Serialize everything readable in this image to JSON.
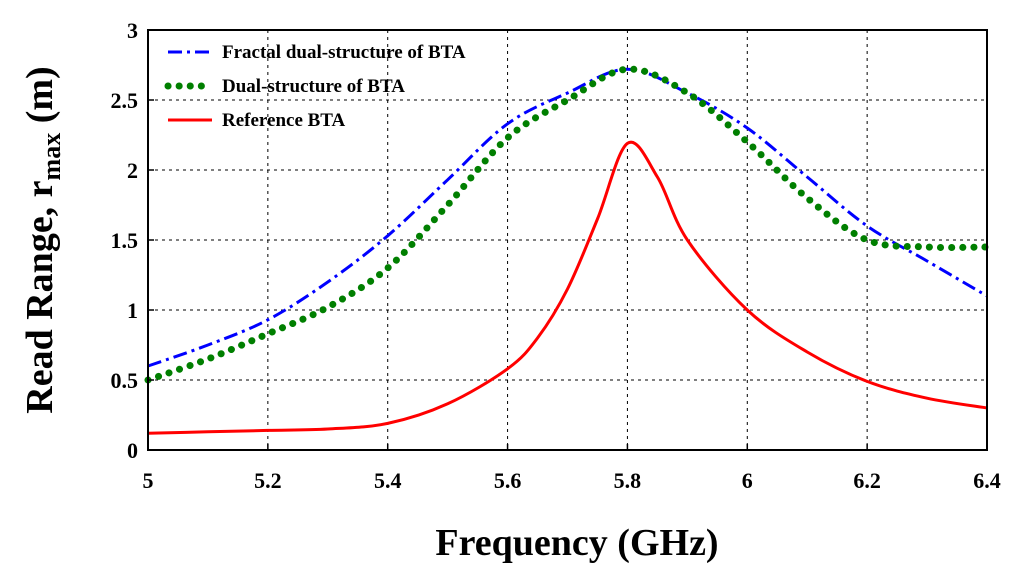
{
  "chart_data": {
    "type": "line",
    "title": "",
    "xlabel": "Frequency (GHz)",
    "ylabel_main": "Read Range, r",
    "ylabel_sub": "max",
    "ylabel_unit": " (m)",
    "xlim": [
      5,
      6.4
    ],
    "ylim": [
      0,
      3
    ],
    "xticks": [
      5,
      5.2,
      5.4,
      5.6,
      5.8,
      6,
      6.2,
      6.4
    ],
    "xtick_labels": [
      "5",
      "5.2",
      "5.4",
      "5.6",
      "5.8",
      "6",
      "6.2",
      "6.4"
    ],
    "yticks": [
      0,
      0.5,
      1,
      1.5,
      2,
      2.5,
      3
    ],
    "ytick_labels": [
      "0",
      "0.5",
      "1",
      "1.5",
      "2",
      "2.5",
      "3"
    ],
    "grid": true,
    "legend_position": "top-left",
    "series": [
      {
        "name": "Fractal dual-structure of BTA",
        "color": "#0000ff",
        "style": "dashdot",
        "x": [
          5.0,
          5.1,
          5.2,
          5.3,
          5.4,
          5.5,
          5.6,
          5.7,
          5.8,
          5.9,
          6.0,
          6.1,
          6.2,
          6.3,
          6.4
        ],
        "y": [
          0.6,
          0.75,
          0.93,
          1.2,
          1.53,
          1.93,
          2.33,
          2.55,
          2.72,
          2.55,
          2.3,
          1.95,
          1.6,
          1.35,
          1.1
        ]
      },
      {
        "name": "Dual-structure of BTA",
        "color": "#007f00",
        "style": "dotted",
        "x": [
          5.0,
          5.1,
          5.2,
          5.3,
          5.4,
          5.5,
          5.6,
          5.7,
          5.8,
          5.9,
          6.0,
          6.1,
          6.2,
          6.3,
          6.4
        ],
        "y": [
          0.5,
          0.65,
          0.83,
          1.02,
          1.3,
          1.75,
          2.23,
          2.5,
          2.72,
          2.55,
          2.2,
          1.8,
          1.5,
          1.45,
          1.45
        ]
      },
      {
        "name": "Reference BTA",
        "color": "#ff0000",
        "style": "solid",
        "x": [
          5.0,
          5.1,
          5.2,
          5.3,
          5.4,
          5.5,
          5.6,
          5.65,
          5.7,
          5.75,
          5.8,
          5.85,
          5.9,
          6.0,
          6.1,
          6.2,
          6.3,
          6.4
        ],
        "y": [
          0.12,
          0.13,
          0.14,
          0.15,
          0.19,
          0.33,
          0.58,
          0.8,
          1.15,
          1.65,
          2.19,
          1.95,
          1.5,
          1.0,
          0.7,
          0.49,
          0.37,
          0.3
        ]
      }
    ]
  }
}
